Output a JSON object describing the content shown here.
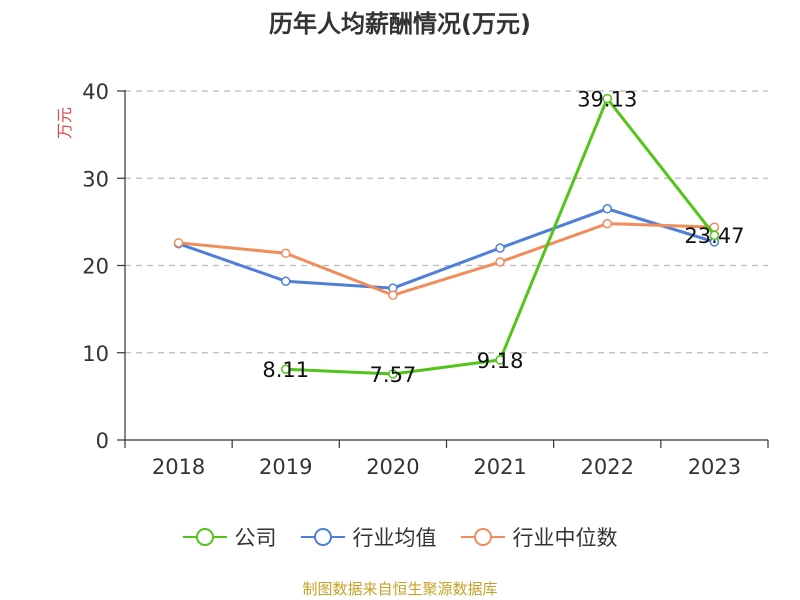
{
  "source": "制图数据来自恒生聚源数据库",
  "colors": {
    "company": "#52c41a",
    "industry_avg": "#4e7fd9",
    "industry_median": "#f28c5a",
    "source": "#c9a227",
    "ylabel": "#e04545"
  },
  "chart_data": {
    "type": "line",
    "title": "历年人均薪酬情况(万元)",
    "ylabel": "万元",
    "xlabel": "",
    "ylim": [
      0,
      40
    ],
    "yticks": [
      "0",
      "10",
      "20",
      "30",
      "40"
    ],
    "categories": [
      "2018",
      "2019",
      "2020",
      "2021",
      "2022",
      "2023"
    ],
    "series": [
      {
        "name": "公司",
        "values": [
          null,
          8.11,
          7.57,
          9.18,
          39.13,
          23.47
        ],
        "labels": [
          "",
          "8.11",
          "7.57",
          "9.18",
          "39.13",
          "23.47"
        ]
      },
      {
        "name": "行业均值",
        "values": [
          22.5,
          18.2,
          17.4,
          22.0,
          26.5,
          22.7
        ]
      },
      {
        "name": "行业中位数",
        "values": [
          22.6,
          21.4,
          16.6,
          20.4,
          24.8,
          24.4
        ]
      }
    ]
  }
}
